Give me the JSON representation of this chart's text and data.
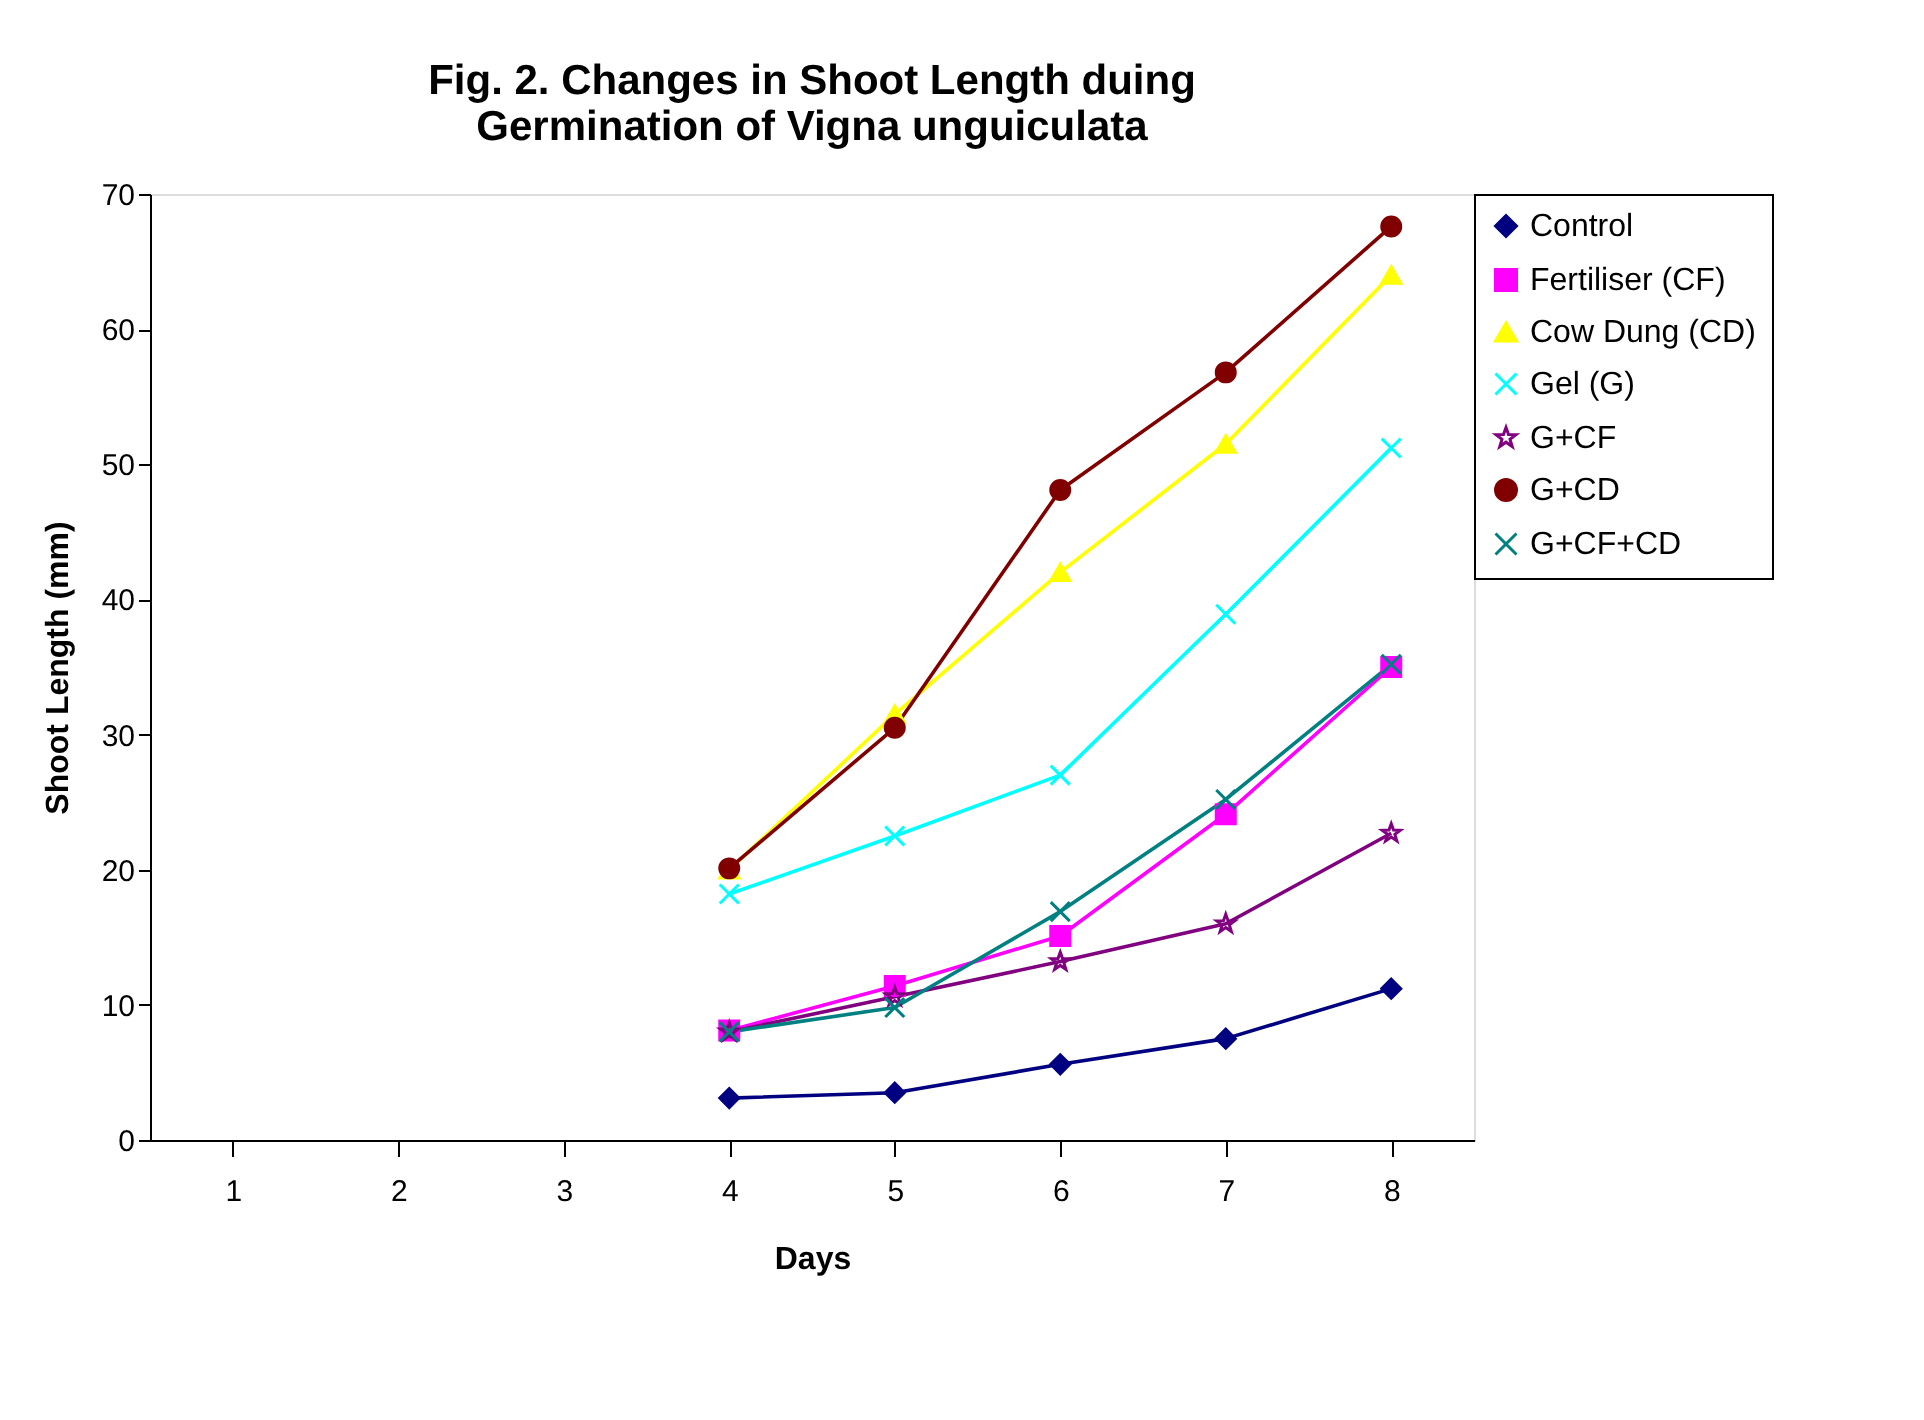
{
  "chart_data": {
    "type": "line",
    "title": "Fig. 2. Changes in Shoot Length duing\nGermination of Vigna unguiculata",
    "xlabel": "Days",
    "ylabel": "Shoot Length (mm)",
    "categories": [
      "1",
      "2",
      "3",
      "4",
      "5",
      "6",
      "7",
      "8"
    ],
    "series": [
      {
        "name": "Control",
        "color": "#000080",
        "marker": "diamond",
        "values": [
          null,
          null,
          null,
          3.1,
          3.5,
          5.6,
          7.5,
          11.2
        ]
      },
      {
        "name": "Fertiliser (CF)",
        "color": "#ff00ff",
        "marker": "square",
        "values": [
          null,
          null,
          null,
          8.1,
          11.4,
          15.1,
          24.1,
          35.0
        ]
      },
      {
        "name": "Cow Dung (CD)",
        "color": "#ffff00",
        "marker": "triangle",
        "values": [
          null,
          null,
          null,
          20.0,
          31.5,
          42.0,
          51.5,
          64.0
        ]
      },
      {
        "name": "Gel (G)",
        "color": "#00ffff",
        "marker": "cross",
        "values": [
          null,
          null,
          null,
          18.2,
          22.5,
          27.0,
          38.9,
          51.2
        ]
      },
      {
        "name": "G+CF",
        "color": "#800080",
        "marker": "star",
        "values": [
          null,
          null,
          null,
          8.0,
          10.6,
          13.2,
          16.0,
          22.7
        ]
      },
      {
        "name": "G+CD",
        "color": "#800000",
        "marker": "circle",
        "values": [
          null,
          null,
          null,
          20.1,
          30.5,
          48.1,
          56.8,
          67.6
        ]
      },
      {
        "name": "G+CF+CD",
        "color": "#008080",
        "marker": "cross",
        "values": [
          null,
          null,
          null,
          8.0,
          9.8,
          16.9,
          25.2,
          35.2
        ]
      }
    ],
    "ylim": [
      0,
      70
    ],
    "yticks": [
      0,
      10,
      20,
      30,
      40,
      50,
      60,
      70
    ],
    "grid": false,
    "legend": "right"
  }
}
